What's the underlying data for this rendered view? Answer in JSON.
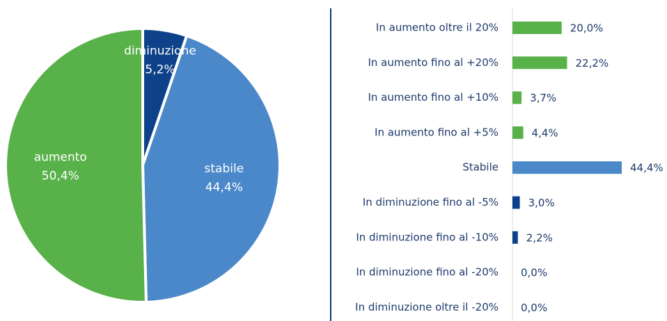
{
  "chart_data": [
    {
      "type": "pie",
      "categories": [
        "diminuzione",
        "stabile",
        "aumento"
      ],
      "values": [
        5.2,
        44.4,
        50.4
      ],
      "value_labels": [
        "5,2%",
        "44,4%",
        "50,4%"
      ],
      "colors": [
        "#0d4189",
        "#4a88c9",
        "#59b14a"
      ]
    },
    {
      "type": "hbar",
      "categories": [
        "In aumento oltre il 20%",
        "In aumento fino al +20%",
        "In aumento fino al +10%",
        "In aumento fino al +5%",
        "Stabile",
        "In diminuzione fino al -5%",
        "In diminuzione fino al -10%",
        "In diminuzione fino al -20%",
        "In diminuzione oltre il -20%"
      ],
      "values": [
        20.0,
        22.2,
        3.7,
        4.4,
        44.4,
        3.0,
        2.2,
        0.0,
        0.0
      ],
      "value_labels": [
        "20,0%",
        "22,2%",
        "3,7%",
        "4,4%",
        "44,4%",
        "3,0%",
        "2,2%",
        "0,0%",
        "0,0%"
      ],
      "colors": [
        "#59b14a",
        "#59b14a",
        "#59b14a",
        "#59b14a",
        "#4a88c9",
        "#0d4189",
        "#0d4189",
        "#0d4189",
        "#0d4189"
      ]
    }
  ]
}
